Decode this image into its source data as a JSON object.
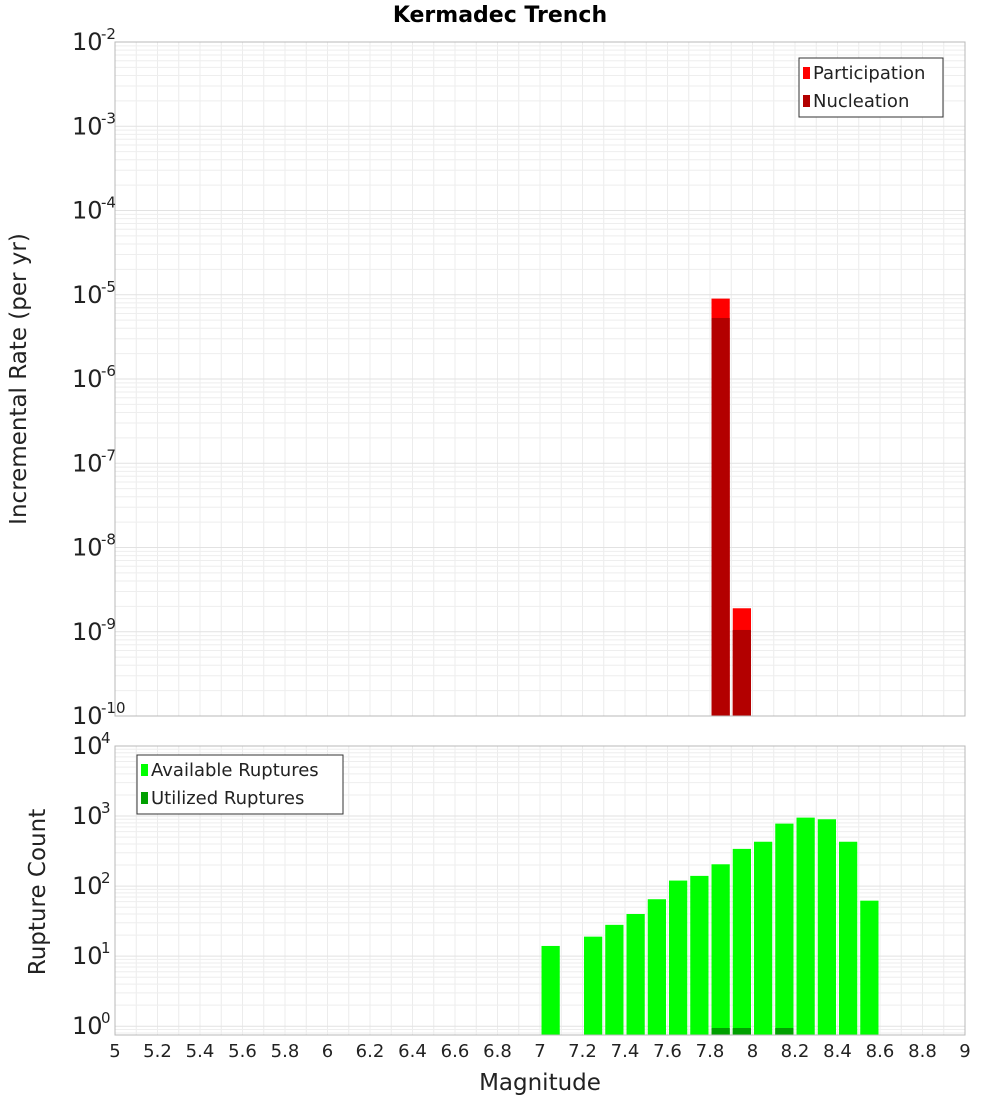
{
  "chart_data": {
    "title": "Kermadec Trench",
    "xlabel": "Magnitude",
    "xlim": [
      5,
      9
    ],
    "xticks": [
      "5",
      "5.2",
      "5.4",
      "5.6",
      "5.8",
      "6",
      "6.2",
      "6.4",
      "6.6",
      "6.8",
      "7",
      "7.2",
      "7.4",
      "7.6",
      "7.8",
      "8",
      "8.2",
      "8.4",
      "8.6",
      "8.8",
      "9"
    ],
    "grid": true,
    "bin_width": 0.1,
    "panels": [
      {
        "type": "bar",
        "yscale": "log",
        "ylabel": "Incremental Rate (per yr)",
        "ylim": [
          1e-10,
          0.01
        ],
        "yticks": [
          {
            "base": "10",
            "exp": "-2",
            "value": 0.01
          },
          {
            "base": "10",
            "exp": "-3",
            "value": 0.001
          },
          {
            "base": "10",
            "exp": "-4",
            "value": 0.0001
          },
          {
            "base": "10",
            "exp": "-5",
            "value": 1e-05
          },
          {
            "base": "10",
            "exp": "-6",
            "value": 1e-06
          },
          {
            "base": "10",
            "exp": "-7",
            "value": 1e-07
          },
          {
            "base": "10",
            "exp": "-8",
            "value": 1e-08
          },
          {
            "base": "10",
            "exp": "-9",
            "value": 1e-09
          },
          {
            "base": "10",
            "exp": "-10",
            "value": 1e-10
          }
        ],
        "legend_position": "top-right",
        "series": [
          {
            "name": "Participation",
            "color": "#ff0000",
            "x": [
              7.85,
              7.95
            ],
            "values": [
              9e-06,
              1.9e-09
            ]
          },
          {
            "name": "Nucleation",
            "color": "#b30000",
            "x": [
              7.85,
              7.95
            ],
            "values": [
              5.3e-06,
              1.05e-09
            ]
          }
        ]
      },
      {
        "type": "bar",
        "yscale": "log",
        "ylabel": "Rupture Count",
        "ylim": [
          0.75,
          10000
        ],
        "yticks": [
          {
            "base": "10",
            "exp": "4",
            "value": 10000
          },
          {
            "base": "10",
            "exp": "3",
            "value": 1000
          },
          {
            "base": "10",
            "exp": "2",
            "value": 100
          },
          {
            "base": "10",
            "exp": "1",
            "value": 10
          },
          {
            "base": "10",
            "exp": "0",
            "value": 1
          }
        ],
        "legend_position": "top-left",
        "series": [
          {
            "name": "Available Ruptures",
            "color": "#00ff00",
            "x": [
              7.05,
              7.25,
              7.35,
              7.45,
              7.55,
              7.65,
              7.75,
              7.85,
              7.95,
              8.05,
              8.15,
              8.25,
              8.35,
              8.45,
              8.55
            ],
            "values": [
              14,
              19,
              28,
              40,
              65,
              120,
              140,
              205,
              340,
              430,
              780,
              950,
              900,
              430,
              62
            ]
          },
          {
            "name": "Utilized Ruptures",
            "color": "#00a000",
            "x": [
              7.85,
              7.95,
              8.15
            ],
            "values": [
              1,
              1,
              1
            ]
          }
        ]
      }
    ]
  }
}
